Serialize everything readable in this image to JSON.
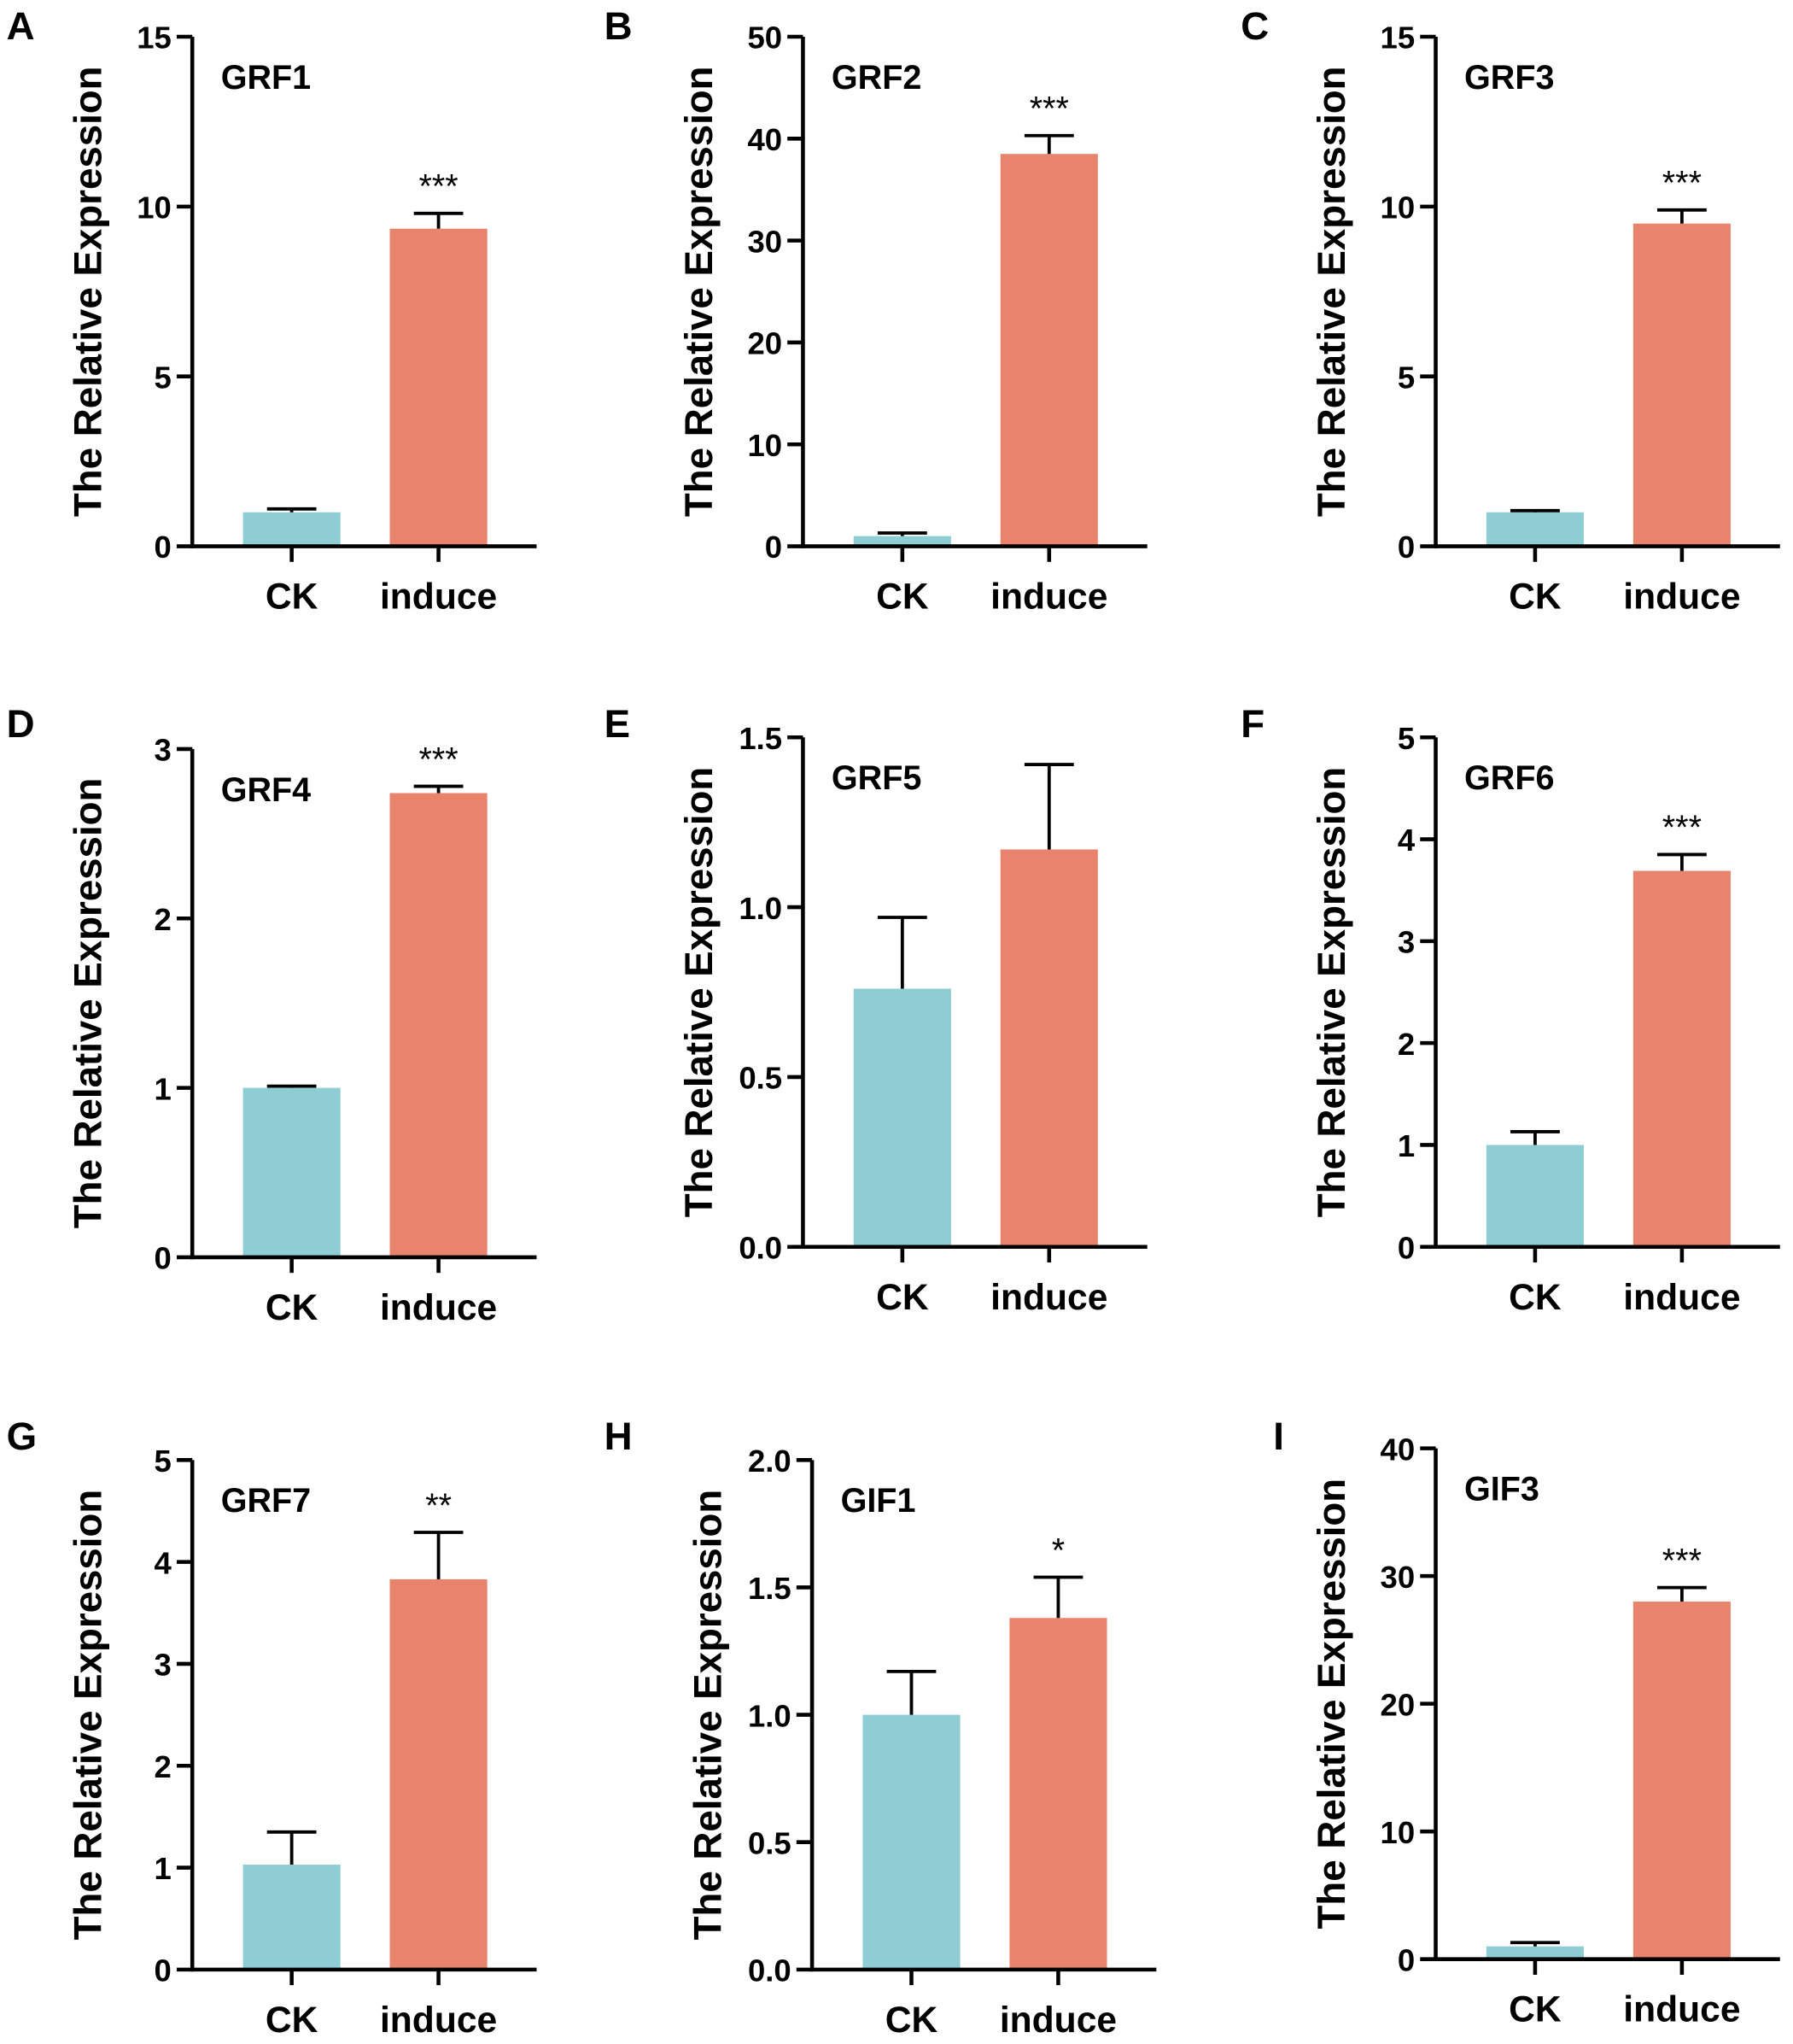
{
  "colors": {
    "ck": "#8ecdd4",
    "induce": "#e8846e",
    "axis": "#000000"
  },
  "chart_data": [
    {
      "type": "bar",
      "panel": "A",
      "title": "GRF1",
      "ylabel": "The Relative Expression",
      "categories": [
        "CK",
        "induce"
      ],
      "values": [
        1.0,
        9.35
      ],
      "error": [
        0.1,
        0.45
      ],
      "ylim": [
        0,
        15
      ],
      "yticks": [
        "0",
        "5",
        "10",
        "15"
      ],
      "tick_values": [
        0,
        5,
        10,
        15
      ],
      "significance": "***"
    },
    {
      "type": "bar",
      "panel": "B",
      "title": "GRF2",
      "ylabel": "The Relative Expression",
      "categories": [
        "CK",
        "induce"
      ],
      "values": [
        1.0,
        38.5
      ],
      "error": [
        0.3,
        1.8
      ],
      "ylim": [
        0,
        50
      ],
      "yticks": [
        "0",
        "10",
        "20",
        "30",
        "40",
        "50"
      ],
      "tick_values": [
        0,
        10,
        20,
        30,
        40,
        50
      ],
      "significance": "***"
    },
    {
      "type": "bar",
      "panel": "C",
      "title": "GRF3",
      "ylabel": "The Relative Expression",
      "categories": [
        "CK",
        "induce"
      ],
      "values": [
        1.0,
        9.5
      ],
      "error": [
        0.05,
        0.4
      ],
      "ylim": [
        0,
        15
      ],
      "yticks": [
        "0",
        "5",
        "10",
        "15"
      ],
      "tick_values": [
        0,
        5,
        10,
        15
      ],
      "significance": "***"
    },
    {
      "type": "bar",
      "panel": "D",
      "title": "GRF4",
      "ylabel": "The Relative Expression",
      "categories": [
        "CK",
        "induce"
      ],
      "values": [
        1.0,
        2.74
      ],
      "error": [
        0.01,
        0.04
      ],
      "ylim": [
        0,
        3
      ],
      "yticks": [
        "0",
        "1",
        "2",
        "3"
      ],
      "tick_values": [
        0,
        1,
        2,
        3
      ],
      "significance": "***"
    },
    {
      "type": "bar",
      "panel": "E",
      "title": "GRF5",
      "ylabel": "The Relative Expression",
      "categories": [
        "CK",
        "induce"
      ],
      "values": [
        0.76,
        1.17
      ],
      "error": [
        0.21,
        0.25
      ],
      "ylim": [
        0,
        1.5
      ],
      "yticks": [
        "0.0",
        "0.5",
        "1.0",
        "1.5"
      ],
      "tick_values": [
        0,
        0.5,
        1.0,
        1.5
      ],
      "significance": ""
    },
    {
      "type": "bar",
      "panel": "F",
      "title": "GRF6",
      "ylabel": "The Relative Expression",
      "categories": [
        "CK",
        "induce"
      ],
      "values": [
        1.0,
        3.69
      ],
      "error": [
        0.13,
        0.16
      ],
      "ylim": [
        0,
        5
      ],
      "yticks": [
        "0",
        "1",
        "2",
        "3",
        "4",
        "5"
      ],
      "tick_values": [
        0,
        1,
        2,
        3,
        4,
        5
      ],
      "significance": "***"
    },
    {
      "type": "bar",
      "panel": "G",
      "title": "GRF7",
      "ylabel": "The Relative Expression",
      "categories": [
        "CK",
        "induce"
      ],
      "values": [
        1.03,
        3.83
      ],
      "error": [
        0.32,
        0.46
      ],
      "ylim": [
        0,
        5
      ],
      "yticks": [
        "0",
        "1",
        "2",
        "3",
        "4",
        "5"
      ],
      "tick_values": [
        0,
        1,
        2,
        3,
        4,
        5
      ],
      "significance": "**"
    },
    {
      "type": "bar",
      "panel": "H",
      "title": "GIF1",
      "ylabel": "The Relative Expression",
      "categories": [
        "CK",
        "induce"
      ],
      "values": [
        1.0,
        1.38
      ],
      "error": [
        0.17,
        0.16
      ],
      "ylim": [
        0,
        2.0
      ],
      "yticks": [
        "0.0",
        "0.5",
        "1.0",
        "1.5",
        "2.0"
      ],
      "tick_values": [
        0,
        0.5,
        1.0,
        1.5,
        2.0
      ],
      "significance": "*"
    },
    {
      "type": "bar",
      "panel": "I",
      "title": "GIF3",
      "ylabel": "The Relative Expression",
      "categories": [
        "CK",
        "induce"
      ],
      "values": [
        1.0,
        28.0
      ],
      "error": [
        0.3,
        1.1
      ],
      "ylim": [
        0,
        40
      ],
      "yticks": [
        "0",
        "10",
        "20",
        "30",
        "40"
      ],
      "tick_values": [
        0,
        10,
        20,
        30,
        40
      ],
      "significance": "***"
    }
  ]
}
